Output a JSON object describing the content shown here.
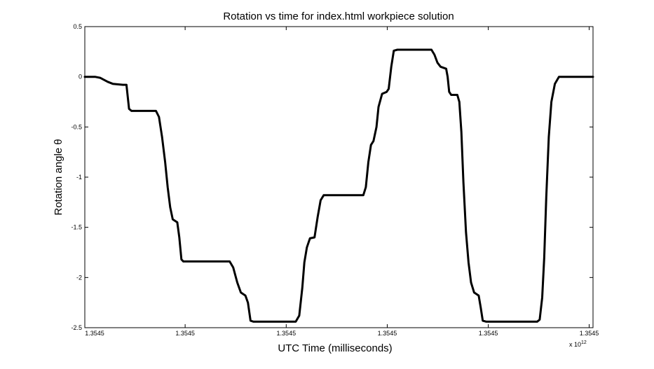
{
  "chart_data": {
    "type": "line",
    "title": "Rotation vs time for index.html workpiece solution",
    "xlabel": "UTC Time (milliseconds)",
    "ylabel": "Rotation angle θ",
    "x_exponent_label": "x 10",
    "x_exponent_power": "12",
    "xlim": [
      0,
      1
    ],
    "ylim": [
      -2.5,
      0.5
    ],
    "x_ticks": [
      {
        "value": 0.0,
        "label": "1.3545"
      },
      {
        "value": 0.1974,
        "label": "1.3545"
      },
      {
        "value": 0.3963,
        "label": "1.3545"
      },
      {
        "value": 0.5951,
        "label": "1.3545"
      },
      {
        "value": 0.7939,
        "label": "1.3545"
      },
      {
        "value": 0.9924,
        "label": "1.3545"
      }
    ],
    "y_ticks": [
      {
        "value": 0.5,
        "label": "0.5"
      },
      {
        "value": 0,
        "label": "0"
      },
      {
        "value": -0.5,
        "label": "-0.5"
      },
      {
        "value": -1,
        "label": "-1"
      },
      {
        "value": -1.5,
        "label": "-1.5"
      },
      {
        "value": -2,
        "label": "-2"
      },
      {
        "value": -2.5,
        "label": "-2.5"
      }
    ],
    "grid": false,
    "legend": "none",
    "series": [
      {
        "color": "#000000",
        "points": [
          [
            0.0,
            0.0
          ],
          [
            0.02,
            0.0
          ],
          [
            0.03,
            -0.01
          ],
          [
            0.045,
            -0.05
          ],
          [
            0.055,
            -0.07
          ],
          [
            0.075,
            -0.08
          ],
          [
            0.082,
            -0.08
          ],
          [
            0.087,
            -0.32
          ],
          [
            0.092,
            -0.34
          ],
          [
            0.14,
            -0.34
          ],
          [
            0.146,
            -0.4
          ],
          [
            0.152,
            -0.6
          ],
          [
            0.158,
            -0.85
          ],
          [
            0.163,
            -1.1
          ],
          [
            0.168,
            -1.3
          ],
          [
            0.173,
            -1.42
          ],
          [
            0.182,
            -1.45
          ],
          [
            0.186,
            -1.6
          ],
          [
            0.19,
            -1.82
          ],
          [
            0.194,
            -1.84
          ],
          [
            0.285,
            -1.84
          ],
          [
            0.292,
            -1.9
          ],
          [
            0.3,
            -2.05
          ],
          [
            0.307,
            -2.15
          ],
          [
            0.316,
            -2.18
          ],
          [
            0.321,
            -2.25
          ],
          [
            0.326,
            -2.43
          ],
          [
            0.332,
            -2.44
          ],
          [
            0.415,
            -2.44
          ],
          [
            0.422,
            -2.38
          ],
          [
            0.428,
            -2.1
          ],
          [
            0.432,
            -1.85
          ],
          [
            0.437,
            -1.7
          ],
          [
            0.443,
            -1.61
          ],
          [
            0.452,
            -1.6
          ],
          [
            0.458,
            -1.4
          ],
          [
            0.464,
            -1.23
          ],
          [
            0.47,
            -1.18
          ],
          [
            0.548,
            -1.18
          ],
          [
            0.553,
            -1.1
          ],
          [
            0.558,
            -0.85
          ],
          [
            0.563,
            -0.68
          ],
          [
            0.568,
            -0.64
          ],
          [
            0.574,
            -0.5
          ],
          [
            0.578,
            -0.3
          ],
          [
            0.585,
            -0.17
          ],
          [
            0.594,
            -0.15
          ],
          [
            0.598,
            -0.12
          ],
          [
            0.603,
            0.1
          ],
          [
            0.608,
            0.26
          ],
          [
            0.615,
            0.27
          ],
          [
            0.682,
            0.27
          ],
          [
            0.688,
            0.22
          ],
          [
            0.694,
            0.14
          ],
          [
            0.7,
            0.1
          ],
          [
            0.711,
            0.08
          ],
          [
            0.714,
            0.0
          ],
          [
            0.717,
            -0.15
          ],
          [
            0.721,
            -0.18
          ],
          [
            0.733,
            -0.18
          ],
          [
            0.737,
            -0.25
          ],
          [
            0.741,
            -0.55
          ],
          [
            0.745,
            -1.05
          ],
          [
            0.75,
            -1.55
          ],
          [
            0.755,
            -1.85
          ],
          [
            0.76,
            -2.05
          ],
          [
            0.766,
            -2.15
          ],
          [
            0.775,
            -2.18
          ],
          [
            0.779,
            -2.3
          ],
          [
            0.783,
            -2.43
          ],
          [
            0.79,
            -2.44
          ],
          [
            0.89,
            -2.44
          ],
          [
            0.895,
            -2.42
          ],
          [
            0.9,
            -2.2
          ],
          [
            0.904,
            -1.8
          ],
          [
            0.908,
            -1.2
          ],
          [
            0.913,
            -0.6
          ],
          [
            0.918,
            -0.25
          ],
          [
            0.925,
            -0.07
          ],
          [
            0.933,
            0.0
          ],
          [
            1.0,
            0.0
          ]
        ]
      }
    ]
  }
}
